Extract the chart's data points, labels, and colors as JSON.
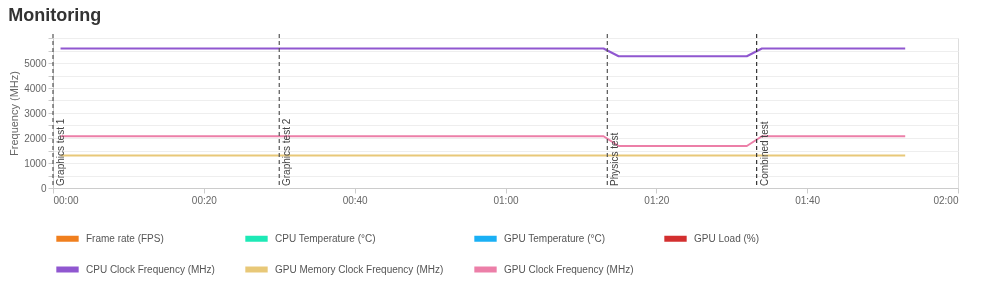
{
  "chart_data": {
    "type": "line",
    "title": "Monitoring",
    "ylabel": "Frequency (MHz)",
    "xlim": [
      0,
      120
    ],
    "ylim": [
      0,
      6000
    ],
    "xticks": [
      {
        "value": 0,
        "label": "00:00"
      },
      {
        "value": 20,
        "label": "00:20"
      },
      {
        "value": 40,
        "label": "00:40"
      },
      {
        "value": 60,
        "label": "01:00"
      },
      {
        "value": 80,
        "label": "01:20"
      },
      {
        "value": 100,
        "label": "01:40"
      },
      {
        "value": 120,
        "label": "02:00"
      }
    ],
    "yticks": [
      0,
      {
        "value": 500,
        "label": null
      },
      1000,
      {
        "value": 1500,
        "label": null
      },
      2000,
      {
        "value": 2500,
        "label": null
      },
      3000,
      {
        "value": 3500,
        "label": null
      },
      4000,
      {
        "value": 4500,
        "label": null
      },
      5000,
      {
        "value": 5500,
        "label": null
      },
      {
        "value": 6000,
        "label": null
      }
    ],
    "grid": "y",
    "legend": "bottom",
    "marker": "none",
    "line_style": "solid",
    "series": [
      {
        "name": "Frame rate (FPS)",
        "color": "#f07f1e"
      },
      {
        "name": "CPU Temperature (°C)",
        "color": "#1de9b6"
      },
      {
        "name": "GPU Temperature (°C)",
        "color": "#1ab0f5"
      },
      {
        "name": "GPU Load (%)",
        "color": "#d32f2f"
      },
      {
        "name": "CPU Clock Frequency (MHz)",
        "color": "#9057d0",
        "x": [
          1,
          73,
          75,
          92,
          94,
          113
        ],
        "values": [
          5580,
          5580,
          5270,
          5270,
          5580,
          5580
        ]
      },
      {
        "name": "GPU Memory Clock Frequency (MHz)",
        "color": "#e8c878",
        "x": [
          1,
          113
        ],
        "values": [
          1300,
          1300
        ]
      },
      {
        "name": "GPU Clock Frequency (MHz)",
        "color": "#ec7fa8",
        "x": [
          1,
          73,
          75,
          92,
          94,
          113
        ],
        "values": [
          2070,
          2070,
          1680,
          1680,
          2070,
          2070
        ]
      }
    ],
    "ref_lines": [
      {
        "axis": "x",
        "value": 0,
        "label": "Graphics test 1",
        "color": "#555555",
        "line_style": "dashed"
      },
      {
        "axis": "x",
        "value": 30,
        "label": "Graphics test 2",
        "color": "#555555",
        "line_style": "dashed"
      },
      {
        "axis": "x",
        "value": 73.5,
        "label": "Physics test",
        "color": "#555555",
        "line_style": "dashed"
      },
      {
        "axis": "x",
        "value": 93.3,
        "label": "Combined test",
        "color": "#333333",
        "line_style": "dashed"
      }
    ]
  }
}
